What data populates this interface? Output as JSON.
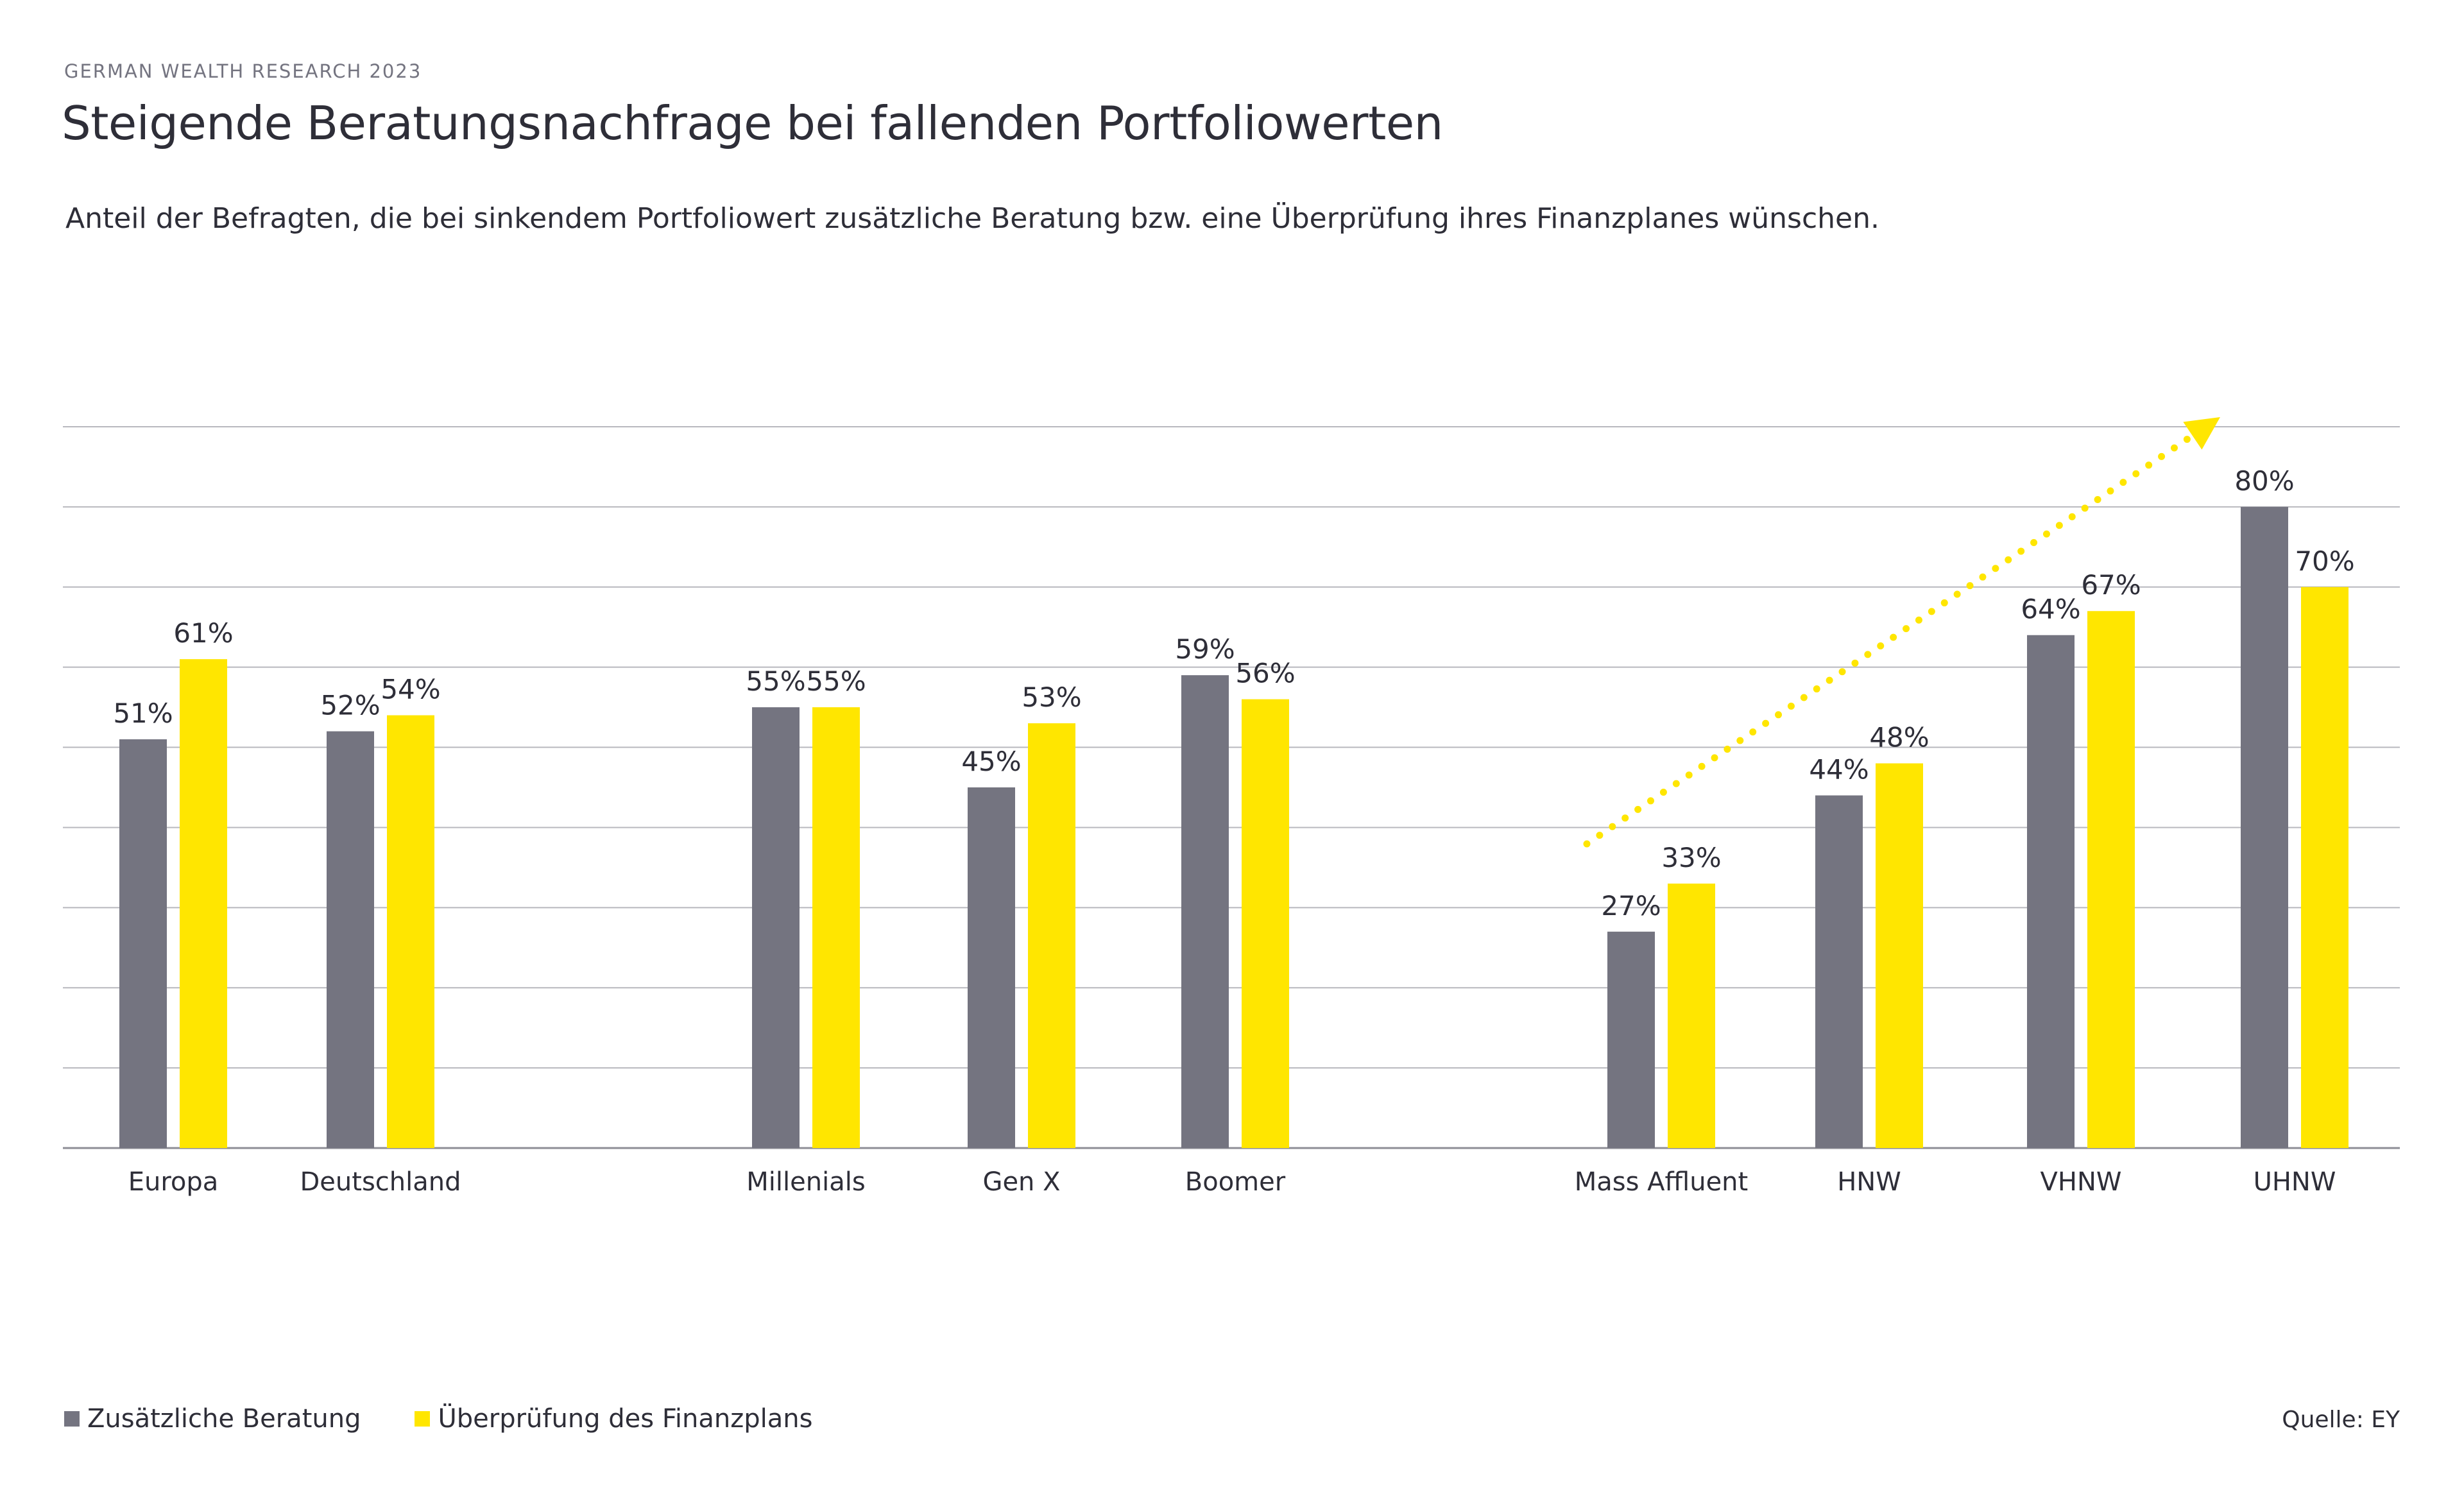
{
  "header": {
    "kicker": "GERMAN WEALTH RESEARCH 2023",
    "title": "Steigende Beratungsnachfrage bei fallenden Portfoliowerten",
    "subtitle": "Anteil der Befragten, die bei sinkendem Portfoliowert zusätzliche Beratung bzw. eine Überprüfung ihres Finanzplanes wünschen."
  },
  "colors": {
    "series_1": "#747480",
    "series_2": "#ffe600",
    "gridline": "#b8b8be",
    "text": "#2e2e38",
    "trend_arrow": "#ffe600"
  },
  "legend": {
    "items": [
      {
        "label": "Zusätzliche Beratung",
        "color": "#747480"
      },
      {
        "label": "Überprüfung des Finanzplans",
        "color": "#ffe600"
      }
    ]
  },
  "footer": {
    "source": "Quelle: EY"
  },
  "chart_data": {
    "type": "bar",
    "title": "Steigende Beratungsnachfrage bei fallenden Portfoliowerten",
    "subtitle": "Anteil der Befragten, die bei sinkendem Portfoliowert zusätzliche Beratung bzw. eine Überprüfung ihres Finanzplanes wünschen.",
    "xlabel": "",
    "ylabel": "",
    "ylim": [
      0,
      90
    ],
    "grid": true,
    "gridline_step": 10,
    "y_tick_labels_visible": false,
    "legend_position": "bottom-left",
    "value_suffix": "%",
    "category_groups": [
      [
        "Europa",
        "Deutschland"
      ],
      [
        "Millenials",
        "Gen X",
        "Boomer"
      ],
      [
        "Mass Affluent",
        "HNW",
        "VHNW",
        "UHNW"
      ]
    ],
    "categories": [
      "Europa",
      "Deutschland",
      "Millenials",
      "Gen X",
      "Boomer",
      "Mass Affluent",
      "HNW",
      "VHNW",
      "UHNW"
    ],
    "series": [
      {
        "name": "Zusätzliche Beratung",
        "color": "#747480",
        "values": [
          51,
          52,
          55,
          45,
          59,
          27,
          44,
          64,
          80
        ]
      },
      {
        "name": "Überprüfung des Finanzplans",
        "color": "#ffe600",
        "values": [
          61,
          54,
          55,
          53,
          56,
          33,
          48,
          67,
          70
        ]
      }
    ],
    "annotations": [
      {
        "type": "dotted-arrow",
        "description": "rising trend from Mass Affluent to UHNW",
        "from_category": "Mass Affluent",
        "to_category": "UHNW"
      }
    ]
  }
}
